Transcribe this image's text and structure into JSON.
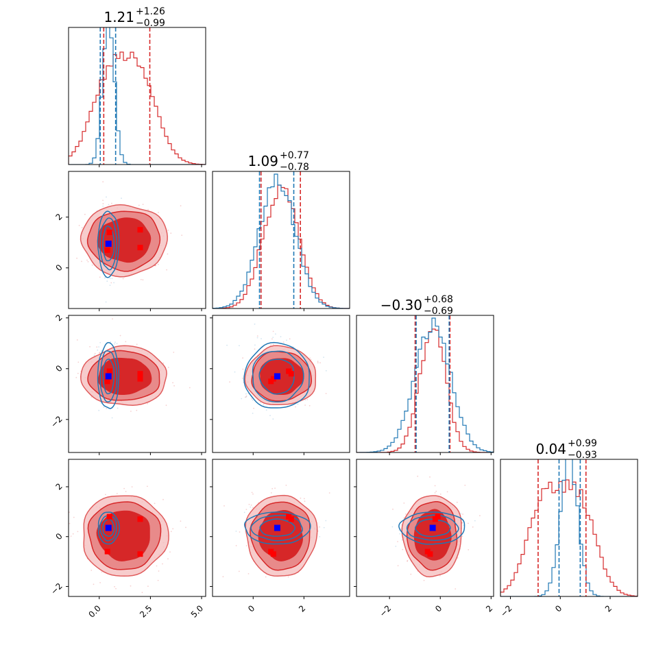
{
  "colors": {
    "red": "#d62728",
    "red_fill_light": "#f5bcbc",
    "red_fill_mid": "#e88a8a",
    "blue": "#1f77b4",
    "blue_marker": "#0000ff",
    "red_marker": "#ff0000"
  },
  "chart_data": {
    "type": "corner",
    "n_params": 4,
    "grid": false,
    "legend": "none",
    "titles": [
      {
        "value": "1.21",
        "plus": "+1.26",
        "minus": "−0.99"
      },
      {
        "value": "1.09",
        "plus": "+0.77",
        "minus": "−0.78"
      },
      {
        "value": "−0.30",
        "plus": "+0.68",
        "minus": "−0.69"
      },
      {
        "value": "0.04",
        "plus": "+0.99",
        "minus": "−0.93"
      }
    ],
    "ranges": [
      [
        -1.5,
        5.2
      ],
      [
        -1.6,
        3.8
      ],
      [
        -3.3,
        2.1
      ],
      [
        -2.4,
        3.1
      ]
    ],
    "ticks": [
      [
        {
          "v": 0.0,
          "label": "0.0"
        },
        {
          "v": 2.5,
          "label": "2.5"
        },
        {
          "v": 5.0,
          "label": "5.0"
        }
      ],
      [
        {
          "v": 0,
          "label": "0"
        },
        {
          "v": 2,
          "label": "2"
        }
      ],
      [
        {
          "v": -2,
          "label": "−2"
        },
        {
          "v": 0,
          "label": "0"
        },
        {
          "v": 2,
          "label": "2"
        }
      ],
      [
        {
          "v": -2,
          "label": "−2"
        },
        {
          "v": 0,
          "label": "0"
        },
        {
          "v": 2,
          "label": "2"
        }
      ]
    ],
    "red_series": {
      "quantiles": [
        [
          0.22,
          2.47
        ],
        [
          0.31,
          1.86
        ],
        [
          -0.99,
          0.38
        ],
        [
          -0.89,
          1.03
        ]
      ],
      "modes": [
        [
          0.5,
          1.4,
          -0.1,
          0.8
        ],
        [
          2.0,
          1.5,
          -0.2,
          0.7
        ],
        [
          2.0,
          0.8,
          -0.4,
          -0.7
        ],
        [
          0.4,
          0.7,
          -0.5,
          -0.6
        ]
      ]
    },
    "blue_series": {
      "quantiles": [
        [
          0.05,
          0.8
        ],
        [
          0.25,
          1.6
        ],
        [
          -0.95,
          0.35
        ],
        [
          -0.05,
          0.8
        ]
      ],
      "truth": [
        0.45,
        0.95,
        -0.3,
        0.35
      ]
    }
  }
}
